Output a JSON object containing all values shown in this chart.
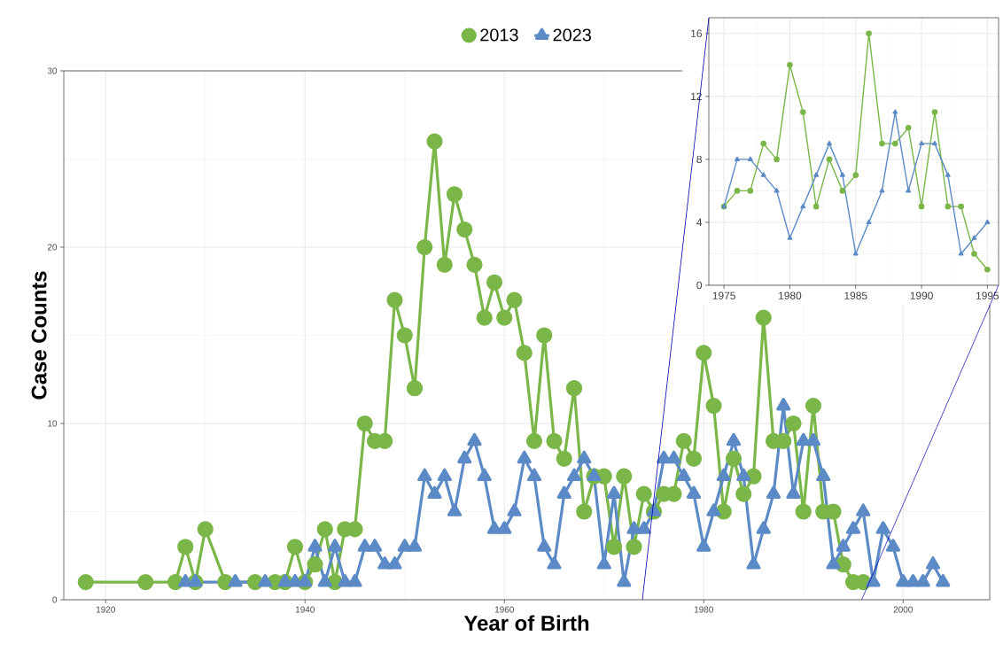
{
  "chart_data": [
    {
      "type": "line",
      "xlabel": "Year of Birth",
      "ylabel": "Case Counts",
      "xlim": [
        1915.8,
        2008.7
      ],
      "ylim": [
        0,
        30
      ],
      "xticks": [
        1920,
        1940,
        1960,
        1980,
        2000
      ],
      "yticks": [
        0,
        10,
        20,
        30
      ],
      "grid": true,
      "legend": "top",
      "series": [
        {
          "name": "2013",
          "color": "#7ab648",
          "marker": "circle",
          "x": [
            1918,
            1924,
            1927,
            1928,
            1929,
            1930,
            1932,
            1935,
            1937,
            1938,
            1939,
            1940,
            1941,
            1942,
            1943,
            1944,
            1945,
            1946,
            1947,
            1948,
            1949,
            1950,
            1951,
            1952,
            1953,
            1954,
            1955,
            1956,
            1957,
            1958,
            1959,
            1960,
            1961,
            1962,
            1963,
            1964,
            1965,
            1966,
            1967,
            1968,
            1969,
            1970,
            1971,
            1972,
            1973,
            1974,
            1975,
            1976,
            1977,
            1978,
            1979,
            1980,
            1981,
            1982,
            1983,
            1984,
            1985,
            1986,
            1987,
            1988,
            1989,
            1990,
            1991,
            1992,
            1993,
            1994,
            1995,
            1996
          ],
          "values": [
            1,
            1,
            1,
            3,
            1,
            4,
            1,
            1,
            1,
            1,
            3,
            1,
            2,
            4,
            1,
            4,
            4,
            10,
            9,
            9,
            17,
            15,
            12,
            20,
            26,
            19,
            23,
            21,
            19,
            16,
            18,
            16,
            17,
            14,
            9,
            15,
            9,
            8,
            12,
            5,
            7,
            7,
            3,
            7,
            3,
            6,
            5,
            6,
            6,
            9,
            8,
            14,
            11,
            5,
            8,
            6,
            7,
            16,
            9,
            9,
            10,
            5,
            11,
            5,
            5,
            2,
            1,
            1
          ]
        },
        {
          "name": "2023",
          "color": "#5b8ac6",
          "marker": "triangle",
          "x": [
            1928,
            1929,
            1933,
            1936,
            1938,
            1939,
            1940,
            1941,
            1942,
            1943,
            1944,
            1945,
            1946,
            1947,
            1948,
            1949,
            1950,
            1951,
            1952,
            1953,
            1954,
            1955,
            1956,
            1957,
            1958,
            1959,
            1960,
            1961,
            1962,
            1963,
            1964,
            1965,
            1966,
            1967,
            1968,
            1969,
            1970,
            1971,
            1972,
            1973,
            1974,
            1975,
            1976,
            1977,
            1978,
            1979,
            1980,
            1981,
            1982,
            1983,
            1984,
            1985,
            1986,
            1987,
            1988,
            1989,
            1990,
            1991,
            1992,
            1993,
            1994,
            1995,
            1996,
            1997,
            1998,
            1999,
            2000,
            2001,
            2002,
            2003,
            2004
          ],
          "values": [
            1,
            1,
            1,
            1,
            1,
            1,
            1,
            3,
            1,
            3,
            1,
            1,
            3,
            3,
            2,
            2,
            3,
            3,
            7,
            6,
            7,
            5,
            8,
            9,
            7,
            4,
            4,
            5,
            8,
            7,
            3,
            2,
            6,
            7,
            8,
            7,
            2,
            6,
            1,
            4,
            4,
            5,
            8,
            8,
            7,
            6,
            3,
            5,
            7,
            9,
            7,
            2,
            4,
            6,
            11,
            6,
            9,
            9,
            7,
            2,
            3,
            4,
            5,
            1,
            4,
            3,
            1,
            1,
            1,
            2,
            1
          ]
        }
      ]
    },
    {
      "type": "line",
      "xlim": [
        1973.85,
        1995.85
      ],
      "ylim": [
        0,
        17
      ],
      "xticks": [
        1975,
        1980,
        1985,
        1990,
        1995
      ],
      "yticks": [
        0,
        4,
        8,
        12,
        16
      ],
      "grid": true,
      "series": [
        {
          "color": "#7ab648",
          "marker": "circle",
          "x": [
            1975,
            1976,
            1977,
            1978,
            1979,
            1980,
            1981,
            1982,
            1983,
            1984,
            1985,
            1986,
            1987,
            1988,
            1989,
            1990,
            1991,
            1992,
            1993,
            1994,
            1995
          ],
          "values": [
            5,
            6,
            6,
            9,
            8,
            14,
            11,
            5,
            8,
            6,
            7,
            16,
            9,
            9,
            10,
            5,
            11,
            5,
            5,
            2,
            1
          ]
        },
        {
          "color": "#5b8ac6",
          "marker": "triangle",
          "x": [
            1975,
            1976,
            1977,
            1978,
            1979,
            1980,
            1981,
            1982,
            1983,
            1984,
            1985,
            1986,
            1987,
            1988,
            1989,
            1990,
            1991,
            1992,
            1993,
            1994,
            1995
          ],
          "values": [
            5,
            8,
            8,
            7,
            6,
            3,
            5,
            7,
            9,
            7,
            2,
            4,
            6,
            11,
            6,
            9,
            9,
            7,
            2,
            3,
            4
          ]
        }
      ]
    }
  ]
}
